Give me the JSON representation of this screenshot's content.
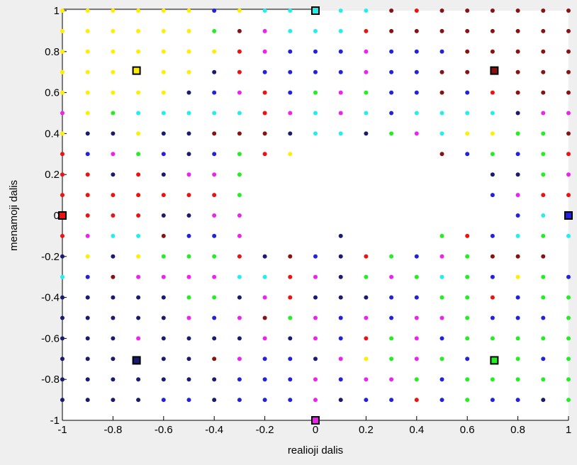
{
  "chart_data": {
    "type": "scatter",
    "title": "",
    "xlabel": "realioji dalis",
    "ylabel": "menamoji dalis",
    "xlim": [
      -1,
      1
    ],
    "ylim": [
      -1,
      1
    ],
    "grid": false,
    "xticks": [
      -1,
      -0.8,
      -0.6,
      -0.4,
      -0.2,
      0,
      0.2,
      0.4,
      0.6,
      0.8,
      1
    ],
    "xtick_labels": [
      "-1",
      "-0.8",
      "-0.6",
      "-0.4",
      "-0.2",
      "0",
      "0.2",
      "0.4",
      "0.6",
      "0.8",
      "1"
    ],
    "yticks": [
      1,
      0.8,
      0.6,
      0.4,
      0.2,
      0,
      -0.2,
      -0.4,
      -0.6,
      -0.8,
      -1
    ],
    "ytick_labels": [
      "1",
      "0.8",
      "0.6",
      "0.4",
      "0.2",
      "0",
      "-0.2",
      "-0.4",
      "-0.6",
      "-0.8",
      "-1"
    ],
    "grid_points": {
      "x_start": -1,
      "x_step": 0.1,
      "y_start": 1,
      "y_step": -0.1,
      "color_legend": {
        "Y": "#ffee00",
        "B": "#2222dd",
        "C": "#22eeee",
        "M": "#ee22ee",
        "R": "#ee1111",
        "W": "#881111",
        "G": "#22ee22",
        "N": "#1a1a70"
      },
      "rows": [
        "YYYYYYBYCCCCCWRWWWWWW",
        "YYYYYYGWMCCCRWWWWWWWW",
        "YYYYYYYRMBBBMBBBWWWWW",
        "YYYYYYNRBBBBMBBWWWWWW",
        "YYYYYNBMRBGMGBBWBRWWW",
        "MYGCCCCCRMCMCBCCCCNMM",
        "YNNYNNWWWNCCNGMCYYGGW",
        "RBMGBNBGRY.....WBGBGR",
        "RRNRNMMG.........NNGMN",
        "RRRRRRRG.........BMRRRR",
        "RRRRNNMM..........BCBBCB",
        "RMCCWBBM...N...GRBCGCRC",
        "NYNYGGGRNWBNRGBMGWWW",
        "CBWMMMMCCRMNGMGCGBYGB",
        "NNNNNGGNMRNNNBBGGRBGG",
        "NNNNNMBMWGMBMBMMGBBBG",
        "NNNMNNNNMNMBRGMBGGGGGG",
        "NNNNNNWMBBNMYGMGBGGBG",
        "NNNNNNNBBBMBMMGBGGGGG",
        "NNNNBBNBBBMNBBRBGBBNG"
      ]
    },
    "highlighted_points": [
      {
        "x": 0,
        "y": 1,
        "color": "#22eeee"
      },
      {
        "x": 0.7071,
        "y": 0.7071,
        "color": "#881111"
      },
      {
        "x": -0.7071,
        "y": 0.7071,
        "color": "#ffee00"
      },
      {
        "x": -1,
        "y": 0,
        "color": "#ee1111"
      },
      {
        "x": 1,
        "y": 0,
        "color": "#2222dd"
      },
      {
        "x": -0.7071,
        "y": -0.7071,
        "color": "#1a1a70"
      },
      {
        "x": 0.7071,
        "y": -0.7071,
        "color": "#22ee22"
      },
      {
        "x": 0,
        "y": -1,
        "color": "#ee22ee"
      }
    ]
  }
}
